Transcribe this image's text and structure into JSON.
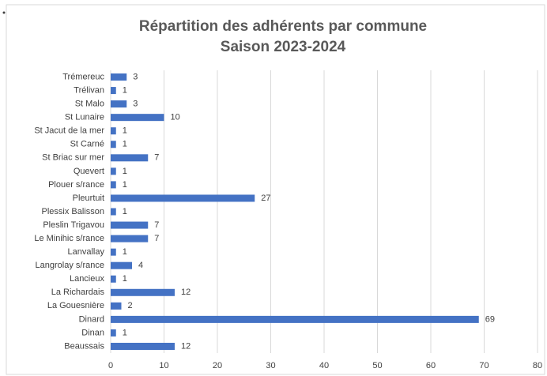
{
  "chart_data": {
    "type": "bar",
    "orientation": "horizontal",
    "title": "Répartition des adhérents par commune",
    "subtitle": "Saison 2023-2024",
    "categories": [
      "Trémereuc",
      "Trélivan",
      "St Malo",
      "St Lunaire",
      "St Jacut de la mer",
      "St Carné",
      "St Briac sur mer",
      "Quevert",
      "Plouer s/rance",
      "Pleurtuit",
      "Plessix Balisson",
      "Pleslin Trigavou",
      "Le Minihic s/rance",
      "Lanvallay",
      "Langrolay s/rance",
      "Lancieux",
      "La Richardais",
      "La Gouesnière",
      "Dinard",
      "Dinan",
      "Beaussais"
    ],
    "values": [
      3,
      1,
      3,
      10,
      1,
      1,
      7,
      1,
      1,
      27,
      1,
      7,
      7,
      1,
      4,
      1,
      12,
      2,
      69,
      1,
      12
    ],
    "color": "#4472c4",
    "xlim": [
      0,
      80
    ],
    "xticks": [
      0,
      10,
      20,
      30,
      40,
      50,
      60,
      70,
      80
    ],
    "grid": true
  }
}
